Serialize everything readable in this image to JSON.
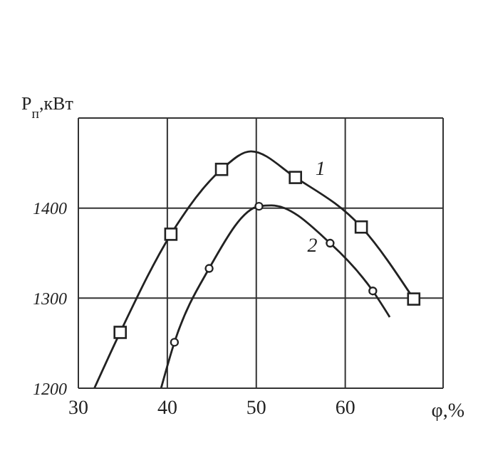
{
  "chart_data": {
    "type": "line",
    "xlabel": "φ,%",
    "ylabel": "P$_{п}$,кВт",
    "xlim": [
      30,
      71
    ],
    "xticks": [
      30,
      40,
      50,
      60
    ],
    "ylim": [
      1200,
      1500
    ],
    "yticks": [
      1200,
      1300,
      1400,
      {
        "value": 1500,
        "label": null
      }
    ],
    "grid": true,
    "legend": false,
    "line_style": "solid",
    "series": [
      {
        "name": "1",
        "color": "#222222",
        "marker": "none",
        "x": [
          31.8,
          34.7,
          40.4,
          46.1,
          49.4,
          54.4,
          61.8,
          67.7
        ],
        "values": [
          1200,
          1262,
          1371,
          1443,
          1463,
          1434,
          1379,
          1299
        ]
      },
      {
        "name": "2",
        "color": "#222222",
        "marker": "none",
        "x": [
          39.3,
          40.8,
          44.7,
          50.3,
          51.7,
          58.3,
          63.1,
          65
        ],
        "values": [
          1200,
          1251,
          1333,
          1402,
          1403,
          1361,
          1308,
          1279
        ]
      },
      {
        "type": "scatter",
        "color": "#222222",
        "marker": "square",
        "x": [
          34.7,
          40.4,
          46.1,
          54.4,
          61.8,
          67.7
        ],
        "values": [
          1262,
          1371,
          1443,
          1434,
          1379,
          1299
        ]
      },
      {
        "type": "scatter",
        "color": "#222222",
        "marker": "circle",
        "x": [
          40.8,
          44.7,
          50.3,
          58.3,
          63.1
        ],
        "values": [
          1251,
          1333,
          1402,
          1361,
          1308
        ]
      }
    ]
  }
}
